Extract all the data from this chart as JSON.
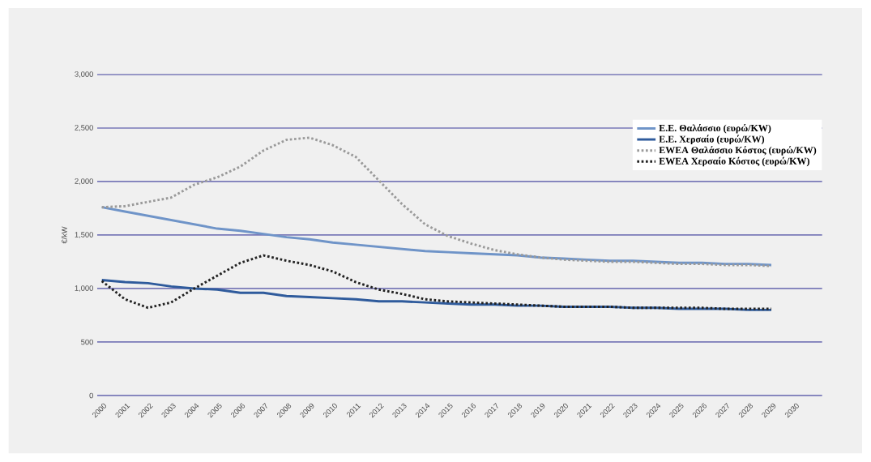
{
  "chart_data": {
    "type": "line",
    "ylabel": "€/kW",
    "categories": [
      "2000",
      "2001",
      "2002",
      "2003",
      "2004",
      "2005",
      "2006",
      "2007",
      "2008",
      "2009",
      "2010",
      "2011",
      "2012",
      "2013",
      "2014",
      "2015",
      "2016",
      "2017",
      "2018",
      "2019",
      "2020",
      "2021",
      "2022",
      "2023",
      "2024",
      "2025",
      "2026",
      "2027",
      "2028",
      "2029",
      "2030"
    ],
    "ylim": [
      0,
      3000
    ],
    "yticks": [
      {
        "value": 0,
        "label": "0"
      },
      {
        "value": 500,
        "label": "500"
      },
      {
        "value": 1000,
        "label": "1,000"
      },
      {
        "value": 1500,
        "label": "1,500"
      },
      {
        "value": 2000,
        "label": "2,000"
      },
      {
        "value": 2500,
        "label": "2,500"
      },
      {
        "value": 3000,
        "label": "3,000"
      }
    ],
    "grid": "y",
    "legend": "top right",
    "series": [
      {
        "name": "Ε.Ε. Θαλάσσιο (ευρώ/KW)",
        "color": "#6f94c8",
        "line_style": "solid",
        "values": [
          1760,
          1720,
          1680,
          1640,
          1600,
          1560,
          1540,
          1510,
          1480,
          1460,
          1430,
          1410,
          1390,
          1370,
          1350,
          1340,
          1330,
          1320,
          1310,
          1290,
          1280,
          1270,
          1260,
          1260,
          1250,
          1240,
          1240,
          1230,
          1230,
          1220,
          null
        ]
      },
      {
        "name": "Ε.Ε. Χερσαίο (ευρώ/KW)",
        "color": "#2f5b9c",
        "line_style": "solid",
        "values": [
          1080,
          1060,
          1050,
          1020,
          1000,
          990,
          960,
          960,
          930,
          920,
          910,
          900,
          880,
          880,
          870,
          860,
          850,
          850,
          840,
          840,
          830,
          830,
          830,
          820,
          820,
          810,
          810,
          810,
          800,
          800,
          null
        ]
      },
      {
        "name": "EWEA Θαλάσσιο Κόστος (ευρώ/KW)",
        "color": "#9a9a9a",
        "line_style": "dotted",
        "values": [
          1760,
          1770,
          1810,
          1850,
          1970,
          2040,
          2140,
          2290,
          2390,
          2410,
          2340,
          2230,
          2010,
          1790,
          1600,
          1490,
          1420,
          1360,
          1320,
          1290,
          1270,
          1260,
          1250,
          1250,
          1240,
          1230,
          1230,
          1220,
          1220,
          1210,
          null
        ]
      },
      {
        "name": "EWEA Χερσαίο Κόστος (ευρώ/KW)",
        "color": "#222222",
        "line_style": "dotted",
        "values": [
          1070,
          900,
          820,
          870,
          1000,
          1120,
          1240,
          1310,
          1260,
          1220,
          1160,
          1060,
          990,
          950,
          900,
          880,
          870,
          860,
          850,
          840,
          830,
          830,
          830,
          820,
          820,
          820,
          820,
          810,
          810,
          810,
          null
        ]
      }
    ]
  }
}
